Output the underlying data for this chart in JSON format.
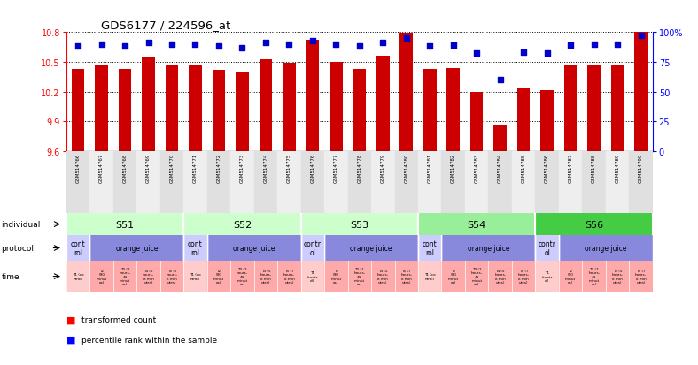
{
  "title": "GDS6177 / 224596_at",
  "samples": [
    "GSM514766",
    "GSM514767",
    "GSM514768",
    "GSM514769",
    "GSM514770",
    "GSM514771",
    "GSM514772",
    "GSM514773",
    "GSM514774",
    "GSM514775",
    "GSM514776",
    "GSM514777",
    "GSM514778",
    "GSM514779",
    "GSM514780",
    "GSM514781",
    "GSM514782",
    "GSM514783",
    "GSM514784",
    "GSM514785",
    "GSM514786",
    "GSM514787",
    "GSM514788",
    "GSM514789",
    "GSM514790"
  ],
  "bar_values": [
    10.43,
    10.47,
    10.43,
    10.55,
    10.47,
    10.47,
    10.42,
    10.4,
    10.53,
    10.49,
    10.72,
    10.5,
    10.43,
    10.56,
    10.79,
    10.43,
    10.44,
    10.2,
    9.87,
    10.23,
    10.21,
    10.46,
    10.47,
    10.47,
    10.8
  ],
  "dot_values": [
    88,
    90,
    88,
    91,
    90,
    90,
    88,
    87,
    91,
    90,
    93,
    90,
    88,
    91,
    95,
    88,
    89,
    82,
    60,
    83,
    82,
    89,
    90,
    90,
    97
  ],
  "ymin": 9.6,
  "ymax": 10.8,
  "yticks": [
    9.6,
    9.9,
    10.2,
    10.5,
    10.8
  ],
  "y2min": 0,
  "y2max": 100,
  "y2ticks": [
    0,
    25,
    50,
    75,
    100
  ],
  "bar_color": "#cc0000",
  "dot_color": "#0000cc",
  "bar_width": 0.55,
  "individuals": [
    {
      "label": "S51",
      "start": 0,
      "end": 4,
      "color": "#ccffcc"
    },
    {
      "label": "S52",
      "start": 5,
      "end": 9,
      "color": "#ccffcc"
    },
    {
      "label": "S53",
      "start": 10,
      "end": 14,
      "color": "#ccffcc"
    },
    {
      "label": "S54",
      "start": 15,
      "end": 19,
      "color": "#99ee99"
    },
    {
      "label": "S56",
      "start": 20,
      "end": 24,
      "color": "#44cc44"
    }
  ],
  "protocols": [
    {
      "label": "cont\nrol",
      "start": 0,
      "end": 0,
      "color": "#ccccff"
    },
    {
      "label": "orange juice",
      "start": 1,
      "end": 4,
      "color": "#8888dd"
    },
    {
      "label": "cont\nrol",
      "start": 5,
      "end": 5,
      "color": "#ccccff"
    },
    {
      "label": "orange juice",
      "start": 6,
      "end": 9,
      "color": "#8888dd"
    },
    {
      "label": "contr\nol",
      "start": 10,
      "end": 10,
      "color": "#ccccff"
    },
    {
      "label": "orange juice",
      "start": 11,
      "end": 14,
      "color": "#8888dd"
    },
    {
      "label": "cont\nrol",
      "start": 15,
      "end": 15,
      "color": "#ccccff"
    },
    {
      "label": "orange juice",
      "start": 16,
      "end": 19,
      "color": "#8888dd"
    },
    {
      "label": "contr\nol",
      "start": 20,
      "end": 20,
      "color": "#ccccff"
    },
    {
      "label": "orange juice",
      "start": 21,
      "end": 24,
      "color": "#8888dd"
    }
  ],
  "times": [
    "T1 (co\nntrol)",
    "T2\n(90\nminut\nes)",
    "T3 (2\nhours,\n49\nminut\nes)",
    "T4 (5\nhours,\n8 min\nutes)",
    "T5 (7\nhours,\n8 min\nutes)",
    "T1 (co\nntrol)",
    "T2\n(90\nminut\nes)",
    "T3 (2\nhours,\n49\nminut\nes)",
    "T4 (5\nhours,\n8 min\nutes)",
    "T5 (7\nhours,\n8 min\nutes)",
    "T1\n(contr\nol)",
    "T2\n(90\nminut\nes)",
    "T3 (2\nhours,\n49\nminut\nes)",
    "T4 (5\nhours,\n8 min\nutes)",
    "T5 (7\nhours,\n8 min\nutes)",
    "T1 (co\nntrol)",
    "T2\n(90\nminut\nes)",
    "T3 (2\nhours,\n49\nminut\nes)",
    "T4 (5\nhours,\n8 min\nutes)",
    "T5 (7\nhours,\n8 min\nutes)",
    "T1\n(contr\nol)",
    "T2\n(90\nminut\nes)",
    "T3 (2\nhours,\n49\nminut\nes)",
    "T4 (5\nhours,\n8 min\nutes)",
    "T5 (7\nhours,\n8 min\nutes)"
  ],
  "time_ctrl_color": "#ffcccc",
  "time_oj_color": "#ffaaaa",
  "time_ctrl_indices": [
    0,
    5,
    10,
    15,
    20
  ],
  "label_individual": "individual",
  "label_protocol": "protocol",
  "label_time": "time",
  "legend_bar": "transformed count",
  "legend_dot": "percentile rank within the sample"
}
